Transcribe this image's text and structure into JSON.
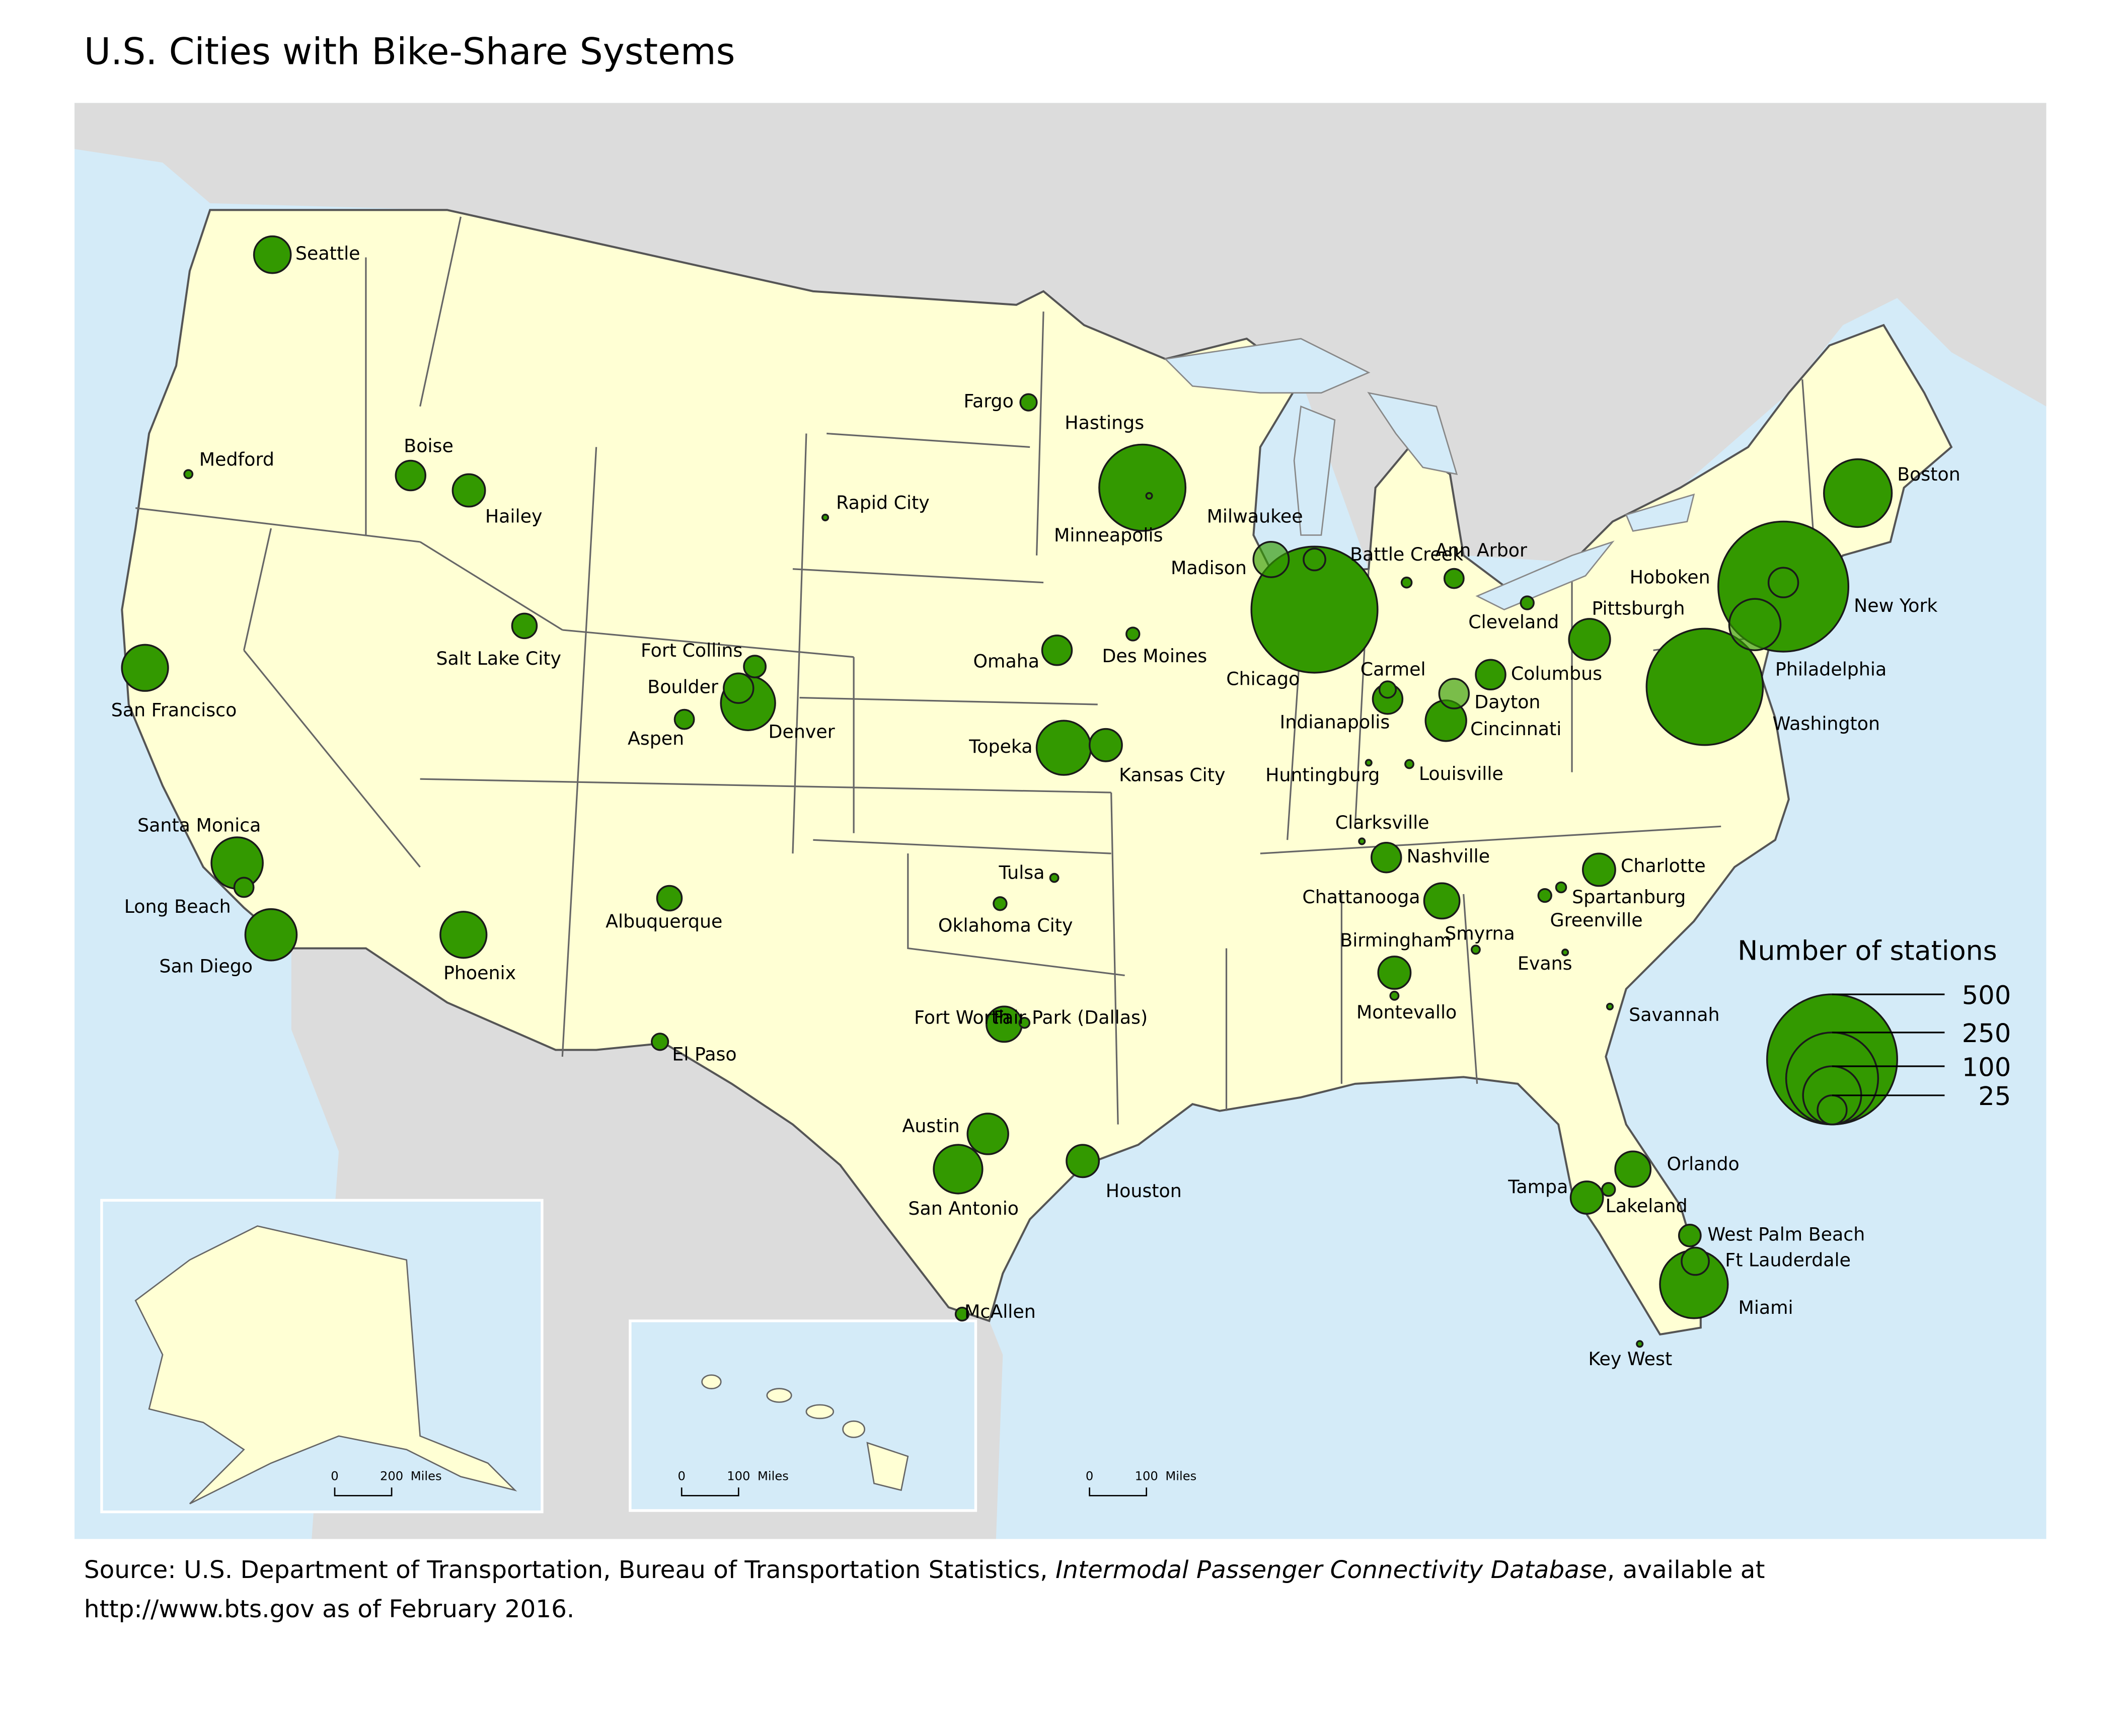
{
  "title": "U.S. Cities with Bike-Share Systems",
  "legend": {
    "title": "Number of stations",
    "values": [
      500,
      250,
      100,
      25
    ]
  },
  "cities": [
    {
      "name": "Seattle",
      "stations": 40
    },
    {
      "name": "Medford",
      "stations": 2
    },
    {
      "name": "Boise",
      "stations": 26
    },
    {
      "name": "Hailey",
      "stations": 31
    },
    {
      "name": "San Francisco",
      "stations": 63
    },
    {
      "name": "Salt Lake City",
      "stations": 18
    },
    {
      "name": "Fort Collins",
      "stations": 14
    },
    {
      "name": "Boulder",
      "stations": 26
    },
    {
      "name": "Denver",
      "stations": 87
    },
    {
      "name": "Aspen",
      "stations": 11
    },
    {
      "name": "Rapid City",
      "stations": 1
    },
    {
      "name": "Fargo",
      "stations": 8
    },
    {
      "name": "Minneapolis",
      "stations": 220
    },
    {
      "name": "Hastings",
      "stations": 1
    },
    {
      "name": "Omaha",
      "stations": 26
    },
    {
      "name": "Des Moines",
      "stations": 5
    },
    {
      "name": "Topeka",
      "stations": 87
    },
    {
      "name": "Kansas City",
      "stations": 31
    },
    {
      "name": "Milwaukee",
      "stations": 14
    },
    {
      "name": "Madison",
      "stations": 37
    },
    {
      "name": "Chicago",
      "stations": 470
    },
    {
      "name": "Battle Creek",
      "stations": 3
    },
    {
      "name": "Ann Arbor",
      "stations": 11
    },
    {
      "name": "Cleveland",
      "stations": 5
    },
    {
      "name": "Pittsburgh",
      "stations": 50
    },
    {
      "name": "Columbus",
      "stations": 26
    },
    {
      "name": "Indianapolis",
      "stations": 26
    },
    {
      "name": "Carmel",
      "stations": 8
    },
    {
      "name": "Dayton",
      "stations": 26
    },
    {
      "name": "Cincinnati",
      "stations": 49
    },
    {
      "name": "Huntingburg",
      "stations": 1
    },
    {
      "name": "Louisville",
      "stations": 2
    },
    {
      "name": "Clarksville",
      "stations": 1
    },
    {
      "name": "Nashville",
      "stations": 26
    },
    {
      "name": "Chattanooga",
      "stations": 37
    },
    {
      "name": "Charlotte",
      "stations": 31
    },
    {
      "name": "Spartanburg",
      "stations": 3
    },
    {
      "name": "Greenville",
      "stations": 5
    },
    {
      "name": "Birmingham",
      "stations": 31
    },
    {
      "name": "Montevallo",
      "stations": 2
    },
    {
      "name": "Smyrna",
      "stations": 2
    },
    {
      "name": "Evans",
      "stations": 1
    },
    {
      "name": "Savannah",
      "stations": 1
    },
    {
      "name": "Boston",
      "stations": 136
    },
    {
      "name": "New York",
      "stations": 500
    },
    {
      "name": "Hoboken",
      "stations": 26
    },
    {
      "name": "Philadelphia",
      "stations": 78
    },
    {
      "name": "Washington",
      "stations": 400
    },
    {
      "name": "Phoenix",
      "stations": 63
    },
    {
      "name": "Santa Monica",
      "stations": 78
    },
    {
      "name": "Long Beach",
      "stations": 11
    },
    {
      "name": "San Diego",
      "stations": 78
    },
    {
      "name": "Albuquerque",
      "stations": 18
    },
    {
      "name": "El Paso",
      "stations": 8
    },
    {
      "name": "Tulsa",
      "stations": 2
    },
    {
      "name": "Oklahoma City",
      "stations": 5
    },
    {
      "name": "Fort Worth",
      "stations": 37
    },
    {
      "name": "Fair Park (Dallas)",
      "stations": 3
    },
    {
      "name": "Austin",
      "stations": 49
    },
    {
      "name": "San Antonio",
      "stations": 70
    },
    {
      "name": "Houston",
      "stations": 31
    },
    {
      "name": "McAllen",
      "stations": 5
    },
    {
      "name": "Orlando",
      "stations": 37
    },
    {
      "name": "Tampa",
      "stations": 31
    },
    {
      "name": "Lakeland",
      "stations": 5
    },
    {
      "name": "West Palm Beach",
      "stations": 14
    },
    {
      "name": "Ft Lauderdale",
      "stations": 22
    },
    {
      "name": "Miami",
      "stations": 136
    },
    {
      "name": "Key West",
      "stations": 1
    }
  ],
  "scale_bars": [
    {
      "start": "0",
      "end": "200",
      "unit": "Miles"
    },
    {
      "start": "0",
      "end": "100",
      "unit": "Miles"
    },
    {
      "start": "0",
      "end": "100",
      "unit": "Miles"
    }
  ],
  "source": {
    "line1_start": "Source: U.S. Department of Transportation, Bureau of Transportation Statistics, ",
    "line1_italic": "Intermodal Passenger Connectivity Database",
    "line1_end": ", available at",
    "line2": "http://www.bts.gov as of February 2016."
  }
}
